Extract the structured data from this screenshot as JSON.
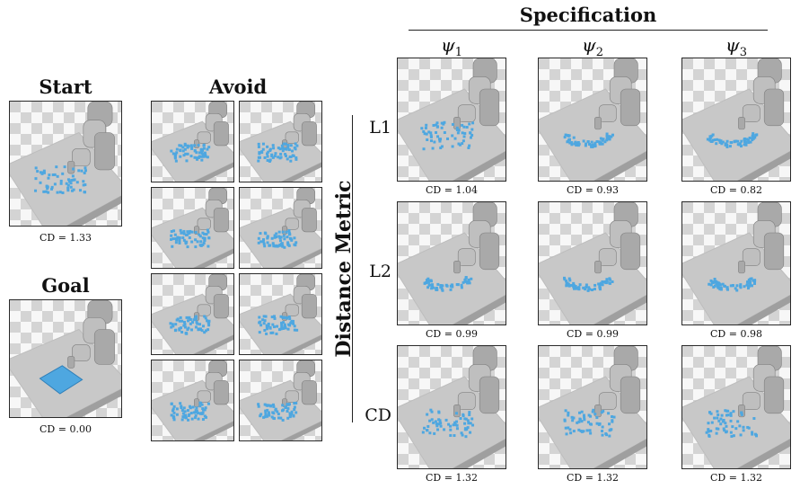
{
  "panels": {
    "start": {
      "title": "Start",
      "caption": "CD = 1.33"
    },
    "goal": {
      "title": "Goal",
      "caption": "CD = 0.00"
    },
    "avoid": {
      "title": "Avoid"
    }
  },
  "grid": {
    "header": "Specification",
    "side_title": "Distance Metric",
    "specs": [
      {
        "sym": "ψ",
        "idx": "1"
      },
      {
        "sym": "ψ",
        "idx": "2"
      },
      {
        "sym": "ψ",
        "idx": "3"
      }
    ],
    "metrics": [
      "L1",
      "L2",
      "CD"
    ],
    "captions": [
      [
        "CD = 1.04",
        "CD = 0.93",
        "CD = 0.82"
      ],
      [
        "CD = 0.99",
        "CD = 0.99",
        "CD = 0.98"
      ],
      [
        "CD = 1.32",
        "CD = 1.32",
        "CD = 1.32"
      ]
    ]
  },
  "colors": {
    "particles": "#4ea7e0",
    "robot": "#a9a9a9",
    "table": "#c8c8c8"
  }
}
